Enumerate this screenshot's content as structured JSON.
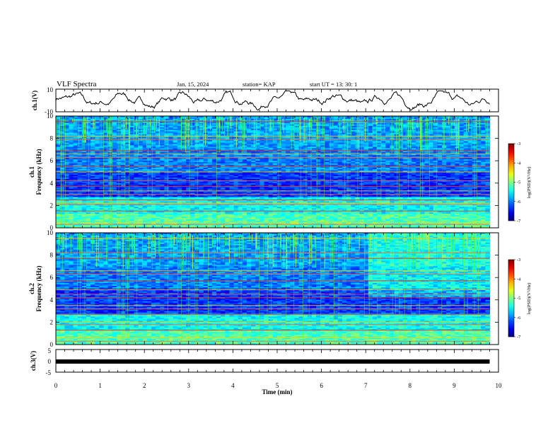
{
  "header": {
    "title": "VLF Spectra",
    "date": "Jan. 15, 2024",
    "station": "station= KAP",
    "start": "start UT = 13: 30: 1"
  },
  "chart_data": [
    {
      "type": "line",
      "ylabel": "ch.1(V)",
      "ylim": [
        -10,
        10
      ],
      "yticks": [
        "10",
        "-10"
      ],
      "xlim": [
        0,
        10
      ],
      "note": "waveform trace, roughly -8 to 8 V, oscillating"
    },
    {
      "type": "heatmap",
      "ylabel_top": "ch.1",
      "ylabel": "Frequency (kHz)",
      "ylim": [
        0,
        10
      ],
      "yticks": [
        "0",
        "2",
        "4",
        "6",
        "8",
        "10"
      ],
      "xlim": [
        0,
        10
      ],
      "data_end_min": 9.8,
      "colorbar": {
        "label": "log(PSD)(V²/Hz)",
        "range": [
          -7,
          -3
        ],
        "ticks": [
          "-3",
          "-4",
          "-5",
          "-6",
          "-7"
        ]
      },
      "bands_khz": [
        0.3,
        0.5,
        1.5,
        2.1,
        2.2,
        2.5,
        3.0,
        3.3,
        3.7,
        4.2,
        5.0,
        5.5,
        6.3,
        6.6,
        6.9,
        7.9,
        8.2,
        9.5
      ]
    },
    {
      "type": "heatmap",
      "ylabel_top": "ch.2",
      "ylabel": "Frequency (kHz)",
      "ylim": [
        0,
        10
      ],
      "yticks": [
        "0",
        "2",
        "4",
        "6",
        "8",
        "10"
      ],
      "xlim": [
        0,
        10
      ],
      "data_end_min": 9.8,
      "colorbar": {
        "label": "log(PSD)(V²/Hz)",
        "range": [
          -7,
          -3
        ],
        "ticks": [
          "-3",
          "-4",
          "-5",
          "-6",
          "-7"
        ]
      },
      "bands_khz": [
        0.3,
        0.6,
        1.3,
        1.8,
        2.0,
        2.7,
        3.2,
        3.5,
        4.2,
        4.5,
        4.9,
        5.7,
        6.3,
        6.6,
        7.7,
        8.2,
        9.5
      ]
    },
    {
      "type": "line",
      "ylabel": "ch.3(V)",
      "ylim": [
        -5,
        5
      ],
      "yticks": [
        "5",
        "0",
        "-5"
      ],
      "xlim": [
        0,
        10
      ],
      "xlabel": "Time (min)",
      "xticks": [
        "0",
        "1",
        "2",
        "3",
        "4",
        "5",
        "6",
        "7",
        "8",
        "9",
        "10"
      ],
      "note": "thick flat trace near 0 V from 0 to 9.8 min"
    }
  ]
}
